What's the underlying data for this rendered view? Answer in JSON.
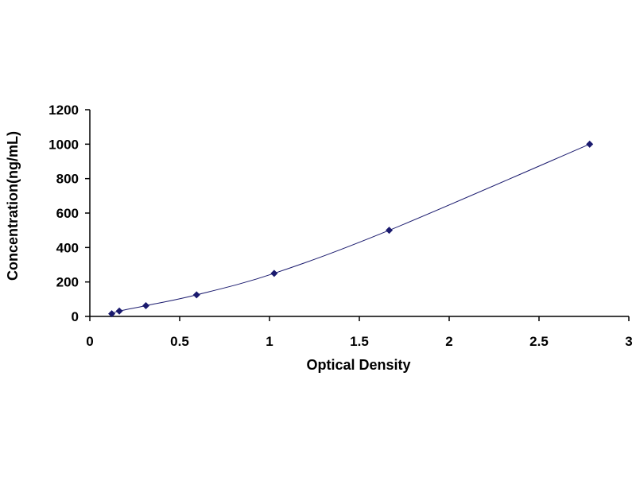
{
  "chart_data": {
    "type": "scatter",
    "title": "",
    "xlabel": "Optical Density",
    "ylabel": "Concentration(ng/mL)",
    "xlim": [
      0,
      3
    ],
    "ylim": [
      0,
      1200
    ],
    "x_ticks": [
      0,
      0.5,
      1,
      1.5,
      2,
      2.5,
      3
    ],
    "x_tick_labels": [
      "0",
      "0.5",
      "1",
      "1.5",
      "2",
      "2.5",
      "3"
    ],
    "y_ticks": [
      0,
      200,
      400,
      600,
      800,
      1000,
      1200
    ],
    "y_tick_labels": [
      "0",
      "200",
      "400",
      "600",
      "800",
      "1000",
      "1200"
    ],
    "grid": false,
    "legend": "none",
    "trendline": "smooth curve through points",
    "series": [
      {
        "x": [
          0.122,
          0.164,
          0.312,
          0.594,
          1.026,
          1.666,
          2.782
        ],
        "y": [
          15.6,
          31.25,
          62.5,
          125,
          250,
          500,
          1000
        ],
        "marker": "diamond",
        "color": "#1a1a6e"
      }
    ],
    "colors": {
      "marker": "#1a1a6e",
      "line": "#1a1a6e",
      "axis": "#000000"
    }
  }
}
